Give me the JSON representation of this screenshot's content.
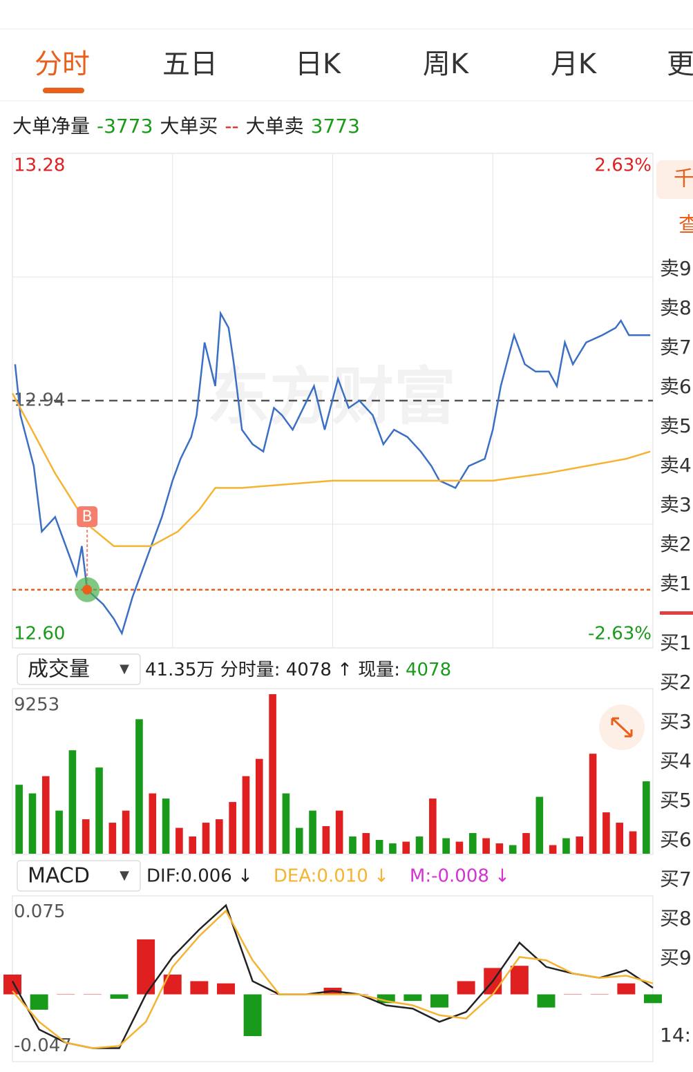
{
  "tabs": [
    "分时",
    "五日",
    "日K",
    "周K",
    "月K",
    "更"
  ],
  "big_order": {
    "net_label": "大单净量",
    "net": -3773,
    "buy_label": "大单买",
    "buy": "--",
    "sell_label": "大单卖",
    "sell": 3773
  },
  "chart_data": [
    {
      "type": "line",
      "watermark": "东方财富",
      "xlim": [
        0,
        240
      ],
      "xgrid": [
        60,
        120,
        180
      ],
      "ylim": [
        12.6,
        13.28
      ],
      "yticks": [
        {
          "value": 12.6,
          "label": "12.60"
        },
        12.94,
        13.28
      ],
      "ygrid": [
        12.77,
        13.11
      ],
      "y2lim": [
        -2.63,
        2.63
      ],
      "y2ticks": [
        {
          "value": -2.63,
          "label": "-2.63%"
        },
        {
          "value": 2.63,
          "label": "2.63%"
        }
      ],
      "series": [
        {
          "color": "#3a6fc4",
          "x": [
            1,
            3,
            8,
            11,
            16,
            21,
            24,
            26,
            28,
            34,
            38,
            41,
            45,
            48,
            52,
            56,
            60,
            63,
            67,
            69,
            72,
            76,
            78,
            81,
            83,
            86,
            90,
            94,
            98,
            101,
            105,
            109,
            113,
            117,
            122,
            126,
            130,
            135,
            139,
            143,
            148,
            153,
            157,
            160,
            166,
            171,
            177,
            180,
            183,
            188,
            192,
            196,
            201,
            204,
            207,
            210,
            215,
            221,
            226,
            228,
            231,
            239
          ],
          "values": [
            12.99,
            12.92,
            12.85,
            12.76,
            12.78,
            12.73,
            12.7,
            12.74,
            12.68,
            12.66,
            12.64,
            12.62,
            12.67,
            12.7,
            12.74,
            12.78,
            12.83,
            12.86,
            12.89,
            12.92,
            13.02,
            12.96,
            13.06,
            13.04,
            12.99,
            12.9,
            12.88,
            12.87,
            12.93,
            12.92,
            12.9,
            12.93,
            12.96,
            12.9,
            12.97,
            12.93,
            12.94,
            12.92,
            12.88,
            12.9,
            12.89,
            12.87,
            12.85,
            12.83,
            12.82,
            12.85,
            12.86,
            12.9,
            12.96,
            13.03,
            12.99,
            12.98,
            12.98,
            12.96,
            13.02,
            12.99,
            13.02,
            13.03,
            13.04,
            13.05,
            13.03,
            13.03
          ]
        },
        {
          "color": "#f5b331",
          "x": [
            0,
            16,
            28,
            38,
            52,
            62,
            70,
            76,
            86,
            120,
            180,
            200,
            215,
            230,
            239
          ],
          "values": [
            12.95,
            12.84,
            12.77,
            12.74,
            12.74,
            12.76,
            12.79,
            12.82,
            12.82,
            12.83,
            12.83,
            12.84,
            12.85,
            12.86,
            12.87
          ]
        }
      ],
      "reference_lines": [
        {
          "value": 12.94,
          "color": "#555555",
          "dash": "12 8"
        },
        {
          "value": 12.68,
          "color": "#e8601c",
          "dash": "5 4"
        }
      ],
      "marker": {
        "label": "B",
        "x": 28,
        "value": 12.68,
        "color": "#f57f6c"
      }
    },
    {
      "type": "bar",
      "title": "成交量",
      "dropdown": "▼",
      "subtitle": "41.35万 分时量: 4078 ↑ 现量:",
      "current": 4078,
      "current_color": "#1a9a1a",
      "xlim": [
        0,
        240
      ],
      "ylim": [
        0,
        9253
      ],
      "yticks": [
        9253
      ],
      "values": [
        4000,
        3500,
        4500,
        2500,
        6000,
        2000,
        5000,
        1800,
        2500,
        7800,
        3500,
        3200,
        1500,
        1000,
        1800,
        2000,
        3000,
        4500,
        5500,
        9253,
        3500,
        1500,
        2500,
        1600,
        2500,
        1000,
        1200,
        800,
        600,
        700,
        1000,
        3200,
        900,
        700,
        1200,
        900,
        600,
        500,
        1200,
        3300,
        500,
        900,
        1000,
        5800,
        2400,
        1800,
        1300,
        4200
      ],
      "colors": [
        "#1a9a1a",
        "#1a9a1a",
        "#e02020",
        "#1a9a1a",
        "#1a9a1a",
        "#e02020",
        "#1a9a1a",
        "#e02020",
        "#e02020",
        "#1a9a1a",
        "#e02020",
        "#1a9a1a",
        "#e02020",
        "#e02020",
        "#e02020",
        "#e02020",
        "#e02020",
        "#e02020",
        "#e02020",
        "#e02020",
        "#1a9a1a",
        "#1a9a1a",
        "#1a9a1a",
        "#e02020",
        "#e02020",
        "#1a9a1a",
        "#e02020",
        "#1a9a1a",
        "#1a9a1a",
        "#e02020",
        "#1a9a1a",
        "#e02020",
        "#1a9a1a",
        "#e02020",
        "#1a9a1a",
        "#e02020",
        "#e02020",
        "#1a9a1a",
        "#e02020",
        "#1a9a1a",
        "#e02020",
        "#1a9a1a",
        "#e02020",
        "#e02020",
        "#e02020",
        "#e02020",
        "#e02020",
        "#1a9a1a"
      ]
    },
    {
      "type": "macd",
      "title": "MACD",
      "dropdown": "▼",
      "xlim": [
        0,
        240
      ],
      "ylim": [
        -0.06,
        0.089
      ],
      "yticks": [
        0.075,
        -0.047
      ],
      "x": [
        0,
        10,
        20,
        30,
        40,
        50,
        60,
        70,
        80,
        90,
        100,
        110,
        120,
        130,
        140,
        150,
        160,
        170,
        180,
        190,
        200,
        210,
        220,
        230,
        240
      ],
      "series": [
        {
          "name": "DIF:0.006 ↓",
          "color": "#222222",
          "values": [
            0.012,
            -0.032,
            -0.044,
            -0.049,
            -0.049,
            0.0,
            0.034,
            0.059,
            0.081,
            0.012,
            0.0,
            0.0,
            0.003,
            0.0,
            -0.01,
            -0.013,
            -0.025,
            -0.016,
            0.012,
            0.047,
            0.025,
            0.019,
            0.015,
            0.022,
            0.006
          ]
        },
        {
          "name": "DEA:0.010 ↓",
          "color": "#f5b331",
          "values": [
            0.003,
            -0.025,
            -0.044,
            -0.049,
            -0.047,
            -0.025,
            0.025,
            0.053,
            0.076,
            0.031,
            0.0,
            0.0,
            0.0,
            0.0,
            -0.006,
            -0.01,
            -0.019,
            -0.022,
            0.0,
            0.034,
            0.031,
            0.019,
            0.015,
            0.017,
            0.01
          ]
        },
        {
          "name": "M:-0.008 ↓",
          "color": "#d233d2",
          "up_color": "#e02020",
          "down_color": "#1a9a1a",
          "values": [
            0.018,
            -0.014,
            0.0,
            0.0,
            -0.004,
            0.05,
            0.018,
            0.012,
            0.01,
            -0.038,
            0.0,
            0.0,
            0.006,
            0.0,
            -0.008,
            -0.006,
            -0.012,
            0.012,
            0.024,
            0.026,
            -0.012,
            0.0,
            0.0,
            0.01,
            -0.008
          ]
        }
      ]
    }
  ],
  "order_book": {
    "tabs": [
      "千",
      "查"
    ],
    "sell": [
      "卖9",
      "卖8",
      "卖7",
      "卖6",
      "卖5",
      "卖4",
      "卖3",
      "卖2",
      "卖1"
    ],
    "buy": [
      "买1",
      "买2",
      "买3",
      "买4",
      "买5",
      "买6",
      "买7",
      "买8",
      "买9"
    ],
    "time": "14:"
  }
}
